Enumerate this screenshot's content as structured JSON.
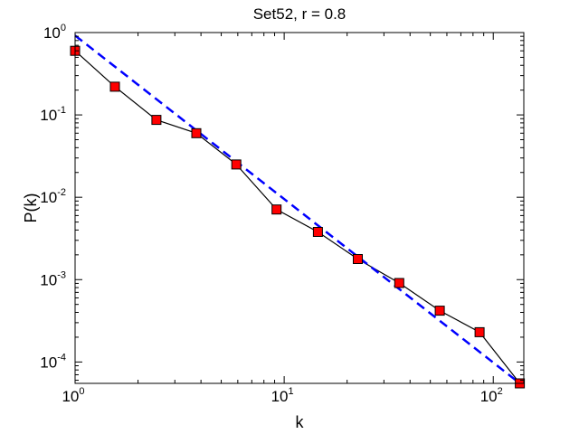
{
  "chart_data": {
    "type": "line",
    "title": "Set52, r = 0.8",
    "xlabel": "k",
    "ylabel": "P(k)",
    "x_scale": "log",
    "y_scale": "log",
    "xlim": [
      1,
      140
    ],
    "ylim": [
      5.5e-05,
      1
    ],
    "grid": false,
    "x_ticks": [
      {
        "value": 1,
        "base": "10",
        "exp": "0"
      },
      {
        "value": 10,
        "base": "10",
        "exp": "1"
      },
      {
        "value": 100,
        "base": "10",
        "exp": "2"
      }
    ],
    "y_ticks": [
      {
        "value": 1,
        "base": "10",
        "exp": "0"
      },
      {
        "value": 0.1,
        "base": "10",
        "exp": "-1"
      },
      {
        "value": 0.01,
        "base": "10",
        "exp": "-2"
      },
      {
        "value": 0.001,
        "base": "10",
        "exp": "-3"
      },
      {
        "value": 0.0001,
        "base": "10",
        "exp": "-4"
      }
    ],
    "series": [
      {
        "style": "black line with red square markers",
        "color": "#000000",
        "marker_color": "#ff0000",
        "x": [
          1,
          1.55,
          2.45,
          3.8,
          5.9,
          9.2,
          14.5,
          22.5,
          35.5,
          55.5,
          86,
          134
        ],
        "y": [
          0.6,
          0.22,
          0.087,
          0.06,
          0.025,
          0.0071,
          0.0038,
          0.00178,
          0.00091,
          0.00042,
          0.00023,
          5.5e-05
        ]
      },
      {
        "style": "blue dashed fit line",
        "color": "#0000ff",
        "x": [
          1,
          134
        ],
        "y": [
          0.92,
          5.5e-05
        ]
      }
    ]
  }
}
